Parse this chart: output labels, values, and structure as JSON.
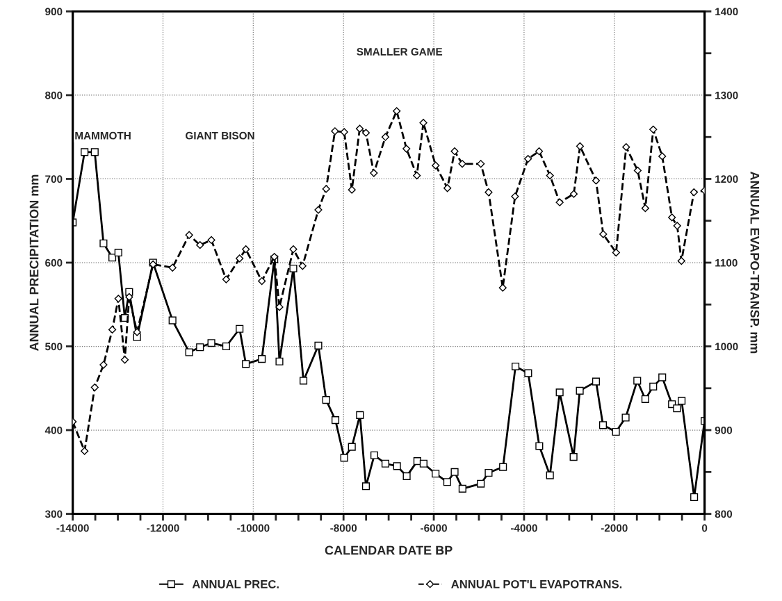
{
  "chart_data": {
    "type": "line",
    "xlabel": "CALENDAR DATE BP",
    "ylabel": "ANNUAL PRECIPITATION mm",
    "y2label": "ANNUAL EVAPO-TRANSP. mm",
    "xlim": [
      -14000,
      0
    ],
    "xticks": [
      -14000,
      {
        "value": -13500,
        "label": null
      },
      {
        "value": -13000,
        "label": null
      },
      {
        "value": -12500,
        "label": null
      },
      -12000,
      {
        "value": -11500,
        "label": null
      },
      {
        "value": -11000,
        "label": null
      },
      {
        "value": -10500,
        "label": null
      },
      -10000,
      {
        "value": -9500,
        "label": null
      },
      {
        "value": -9000,
        "label": null
      },
      {
        "value": -8500,
        "label": null
      },
      -8000,
      {
        "value": -7500,
        "label": null
      },
      {
        "value": -7000,
        "label": null
      },
      {
        "value": -6500,
        "label": null
      },
      -6000,
      {
        "value": -5500,
        "label": null
      },
      {
        "value": -5000,
        "label": null
      },
      {
        "value": -4500,
        "label": null
      },
      -4000,
      {
        "value": -3500,
        "label": null
      },
      {
        "value": -3000,
        "label": null
      },
      {
        "value": -2500,
        "label": null
      },
      -2000,
      {
        "value": -1500,
        "label": null
      },
      {
        "value": -1000,
        "label": null
      },
      {
        "value": -500,
        "label": null
      },
      0
    ],
    "ylim": [
      300,
      900
    ],
    "yticks": [
      300,
      400,
      500,
      600,
      700,
      800,
      900
    ],
    "y2lim": [
      800,
      1400
    ],
    "y2ticks": [
      800,
      {
        "value": 850,
        "label": null
      },
      900,
      {
        "value": 950,
        "label": null
      },
      1000,
      {
        "value": 1050,
        "label": null
      },
      1100,
      {
        "value": 1150,
        "label": null
      },
      1200,
      {
        "value": 1250,
        "label": null
      },
      1300,
      {
        "value": 1350,
        "label": null
      },
      1400
    ],
    "grid": true,
    "legend": "bottom",
    "annotations": [
      "MAMMOTH",
      "GIANT BISON",
      "SMALLER GAME"
    ],
    "series": [
      {
        "name": "ANNUAL PREC.",
        "color": "#000000",
        "marker": "square",
        "line_style": "solid",
        "x": [
          -14000,
          -13738,
          -13512,
          -13318,
          -13123,
          -12989,
          -12846,
          -12749,
          -12575,
          -12220,
          -11789,
          -11420,
          -11180,
          -10928,
          -10600,
          -10303,
          -10164,
          -9810,
          -9533,
          -9420,
          -9112,
          -8888,
          -8558,
          -8385,
          -8180,
          -7985,
          -7815,
          -7636,
          -7503,
          -7318,
          -7072,
          -6815,
          -6600,
          -6365,
          -6226,
          -5960,
          -5703,
          -5538,
          -5364,
          -4958,
          -4785,
          -4466,
          -4190,
          -3908,
          -3662,
          -3426,
          -3211,
          -2903,
          -2765,
          -2405,
          -2251,
          -1964,
          -1749,
          -1492,
          -1313,
          -1138,
          -938,
          -723,
          -612,
          -508,
          -231,
          0
        ],
        "values": [
          648,
          732,
          732,
          623,
          606,
          612,
          534,
          565,
          511,
          600,
          531,
          493,
          499,
          504,
          500,
          521,
          479,
          485,
          604,
          482,
          593,
          459,
          501,
          436,
          412,
          367,
          380,
          418,
          333,
          370,
          360,
          357,
          345,
          363,
          360,
          348,
          338,
          350,
          330,
          336,
          349,
          356,
          476,
          468,
          381,
          346,
          445,
          368,
          447,
          458,
          406,
          398,
          415,
          459,
          437,
          452,
          463,
          431,
          426,
          435,
          320,
          411
        ]
      },
      {
        "name": "ANNUAL POT'L EVAPOTRANS.",
        "color": "#000000",
        "marker": "diamond",
        "line_style": "dashed",
        "axis": "y2",
        "x": [
          -14000,
          -13738,
          -13512,
          -13318,
          -13123,
          -12989,
          -12846,
          -12749,
          -12575,
          -12220,
          -11789,
          -11420,
          -11180,
          -10928,
          -10600,
          -10303,
          -10164,
          -9810,
          -9533,
          -9420,
          -9112,
          -8908,
          -8558,
          -8385,
          -8190,
          -7985,
          -7815,
          -7641,
          -7503,
          -7328,
          -7072,
          -6822,
          -6606,
          -6375,
          -6231,
          -5958,
          -5698,
          -5538,
          -5369,
          -4958,
          -4785,
          -4472,
          -4200,
          -3912,
          -3666,
          -3426,
          -3211,
          -2898,
          -2760,
          -2405,
          -2246,
          -1960,
          -1738,
          -1482,
          -1313,
          -1138,
          -938,
          -723,
          -607,
          -513,
          -236,
          0
        ],
        "values": [
          910,
          875,
          951,
          978,
          1020,
          1057,
          984,
          1059,
          1017,
          1098,
          1094,
          1133,
          1121,
          1127,
          1080,
          1105,
          1116,
          1078,
          1107,
          1047,
          1116,
          1096,
          1163,
          1188,
          1257,
          1256,
          1187,
          1260,
          1255,
          1207,
          1250,
          1281,
          1236,
          1204,
          1267,
          1216,
          1189,
          1233,
          1218,
          1218,
          1184,
          1070,
          1179,
          1224,
          1233,
          1204,
          1172,
          1182,
          1239,
          1198,
          1134,
          1112,
          1238,
          1210,
          1165,
          1259,
          1227,
          1154,
          1144,
          1102,
          1184,
          1186
        ]
      }
    ]
  }
}
